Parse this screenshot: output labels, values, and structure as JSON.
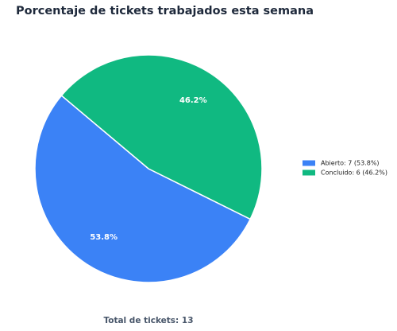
{
  "chart_data": {
    "type": "pie",
    "title": "Porcentaje de tickets trabajados esta semana",
    "categories": [
      "Abierto: 7 (53.8%)",
      "Concluido: 6 (46.2%)"
    ],
    "values": [
      53.8,
      46.2
    ],
    "value_labels": [
      "53.8%",
      "46.2%"
    ],
    "colors": [
      "#3b82f6",
      "#10b981"
    ],
    "legend": "right",
    "footer": "Total de tickets: 13"
  }
}
